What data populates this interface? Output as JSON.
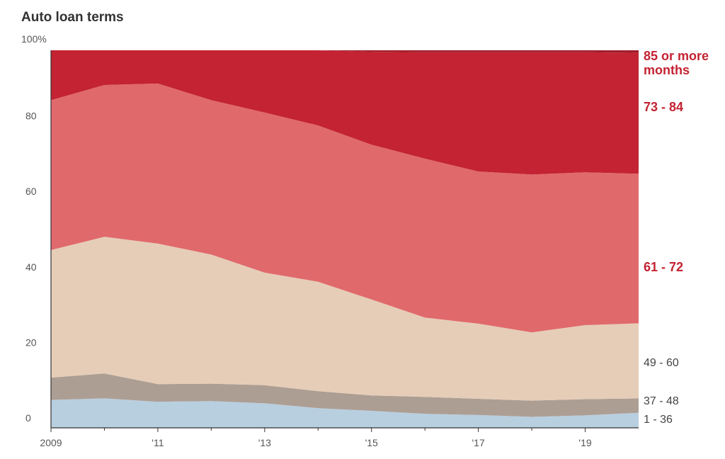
{
  "chart_data": {
    "type": "area",
    "stacked": true,
    "title": "Auto loan terms",
    "xlabel": "",
    "ylabel": "",
    "ylim": [
      0,
      100
    ],
    "xlim": [
      2009,
      2020
    ],
    "y_ticks": [
      0,
      20,
      40,
      60,
      80,
      100
    ],
    "y_tick_labels": [
      "0",
      "20",
      "40",
      "60",
      "80",
      "100%"
    ],
    "x_ticks": [
      2009,
      2011,
      2013,
      2015,
      2017,
      2019
    ],
    "x_tick_labels": [
      "2009",
      "'11",
      "'13",
      "'15",
      "'17",
      "'19"
    ],
    "grid": false,
    "legend": "direct labels at right",
    "x": [
      2009,
      2010,
      2011,
      2012,
      2013,
      2014,
      2015,
      2016,
      2017,
      2018,
      2019,
      2020
    ],
    "series": [
      {
        "name": "1 - 36",
        "color": "#b8cfe0",
        "values": [
          7.4,
          7.8,
          6.9,
          7.1,
          6.5,
          5.2,
          4.5,
          3.7,
          3.4,
          2.9,
          3.3,
          4.0
        ]
      },
      {
        "name": "37 - 48",
        "color": "#ad9e94",
        "values": [
          5.9,
          6.6,
          4.7,
          4.6,
          4.8,
          4.5,
          4.1,
          4.5,
          4.3,
          4.3,
          4.3,
          3.8
        ]
      },
      {
        "name": "49 - 60",
        "color": "#e6cdb7",
        "values": [
          33.8,
          36.2,
          37.2,
          34.2,
          29.8,
          29.0,
          25.4,
          21.0,
          19.9,
          18.1,
          19.6,
          19.9
        ]
      },
      {
        "name": "61 - 72",
        "color": "#e0696c",
        "values": [
          39.7,
          40.2,
          42.4,
          40.9,
          42.4,
          41.4,
          41.0,
          42.1,
          40.3,
          41.8,
          40.5,
          39.6
        ]
      },
      {
        "name": "73 - 84",
        "color": "#c32332",
        "values": [
          13.2,
          9.2,
          8.8,
          13.2,
          16.5,
          19.9,
          24.6,
          28.2,
          31.6,
          32.4,
          31.8,
          32.0
        ]
      },
      {
        "name": "85 or more months",
        "color": "#a11d2b",
        "values": [
          0.0,
          0.0,
          0.0,
          0.0,
          0.0,
          0.0,
          0.4,
          0.5,
          0.5,
          0.5,
          0.5,
          0.7
        ]
      }
    ]
  }
}
